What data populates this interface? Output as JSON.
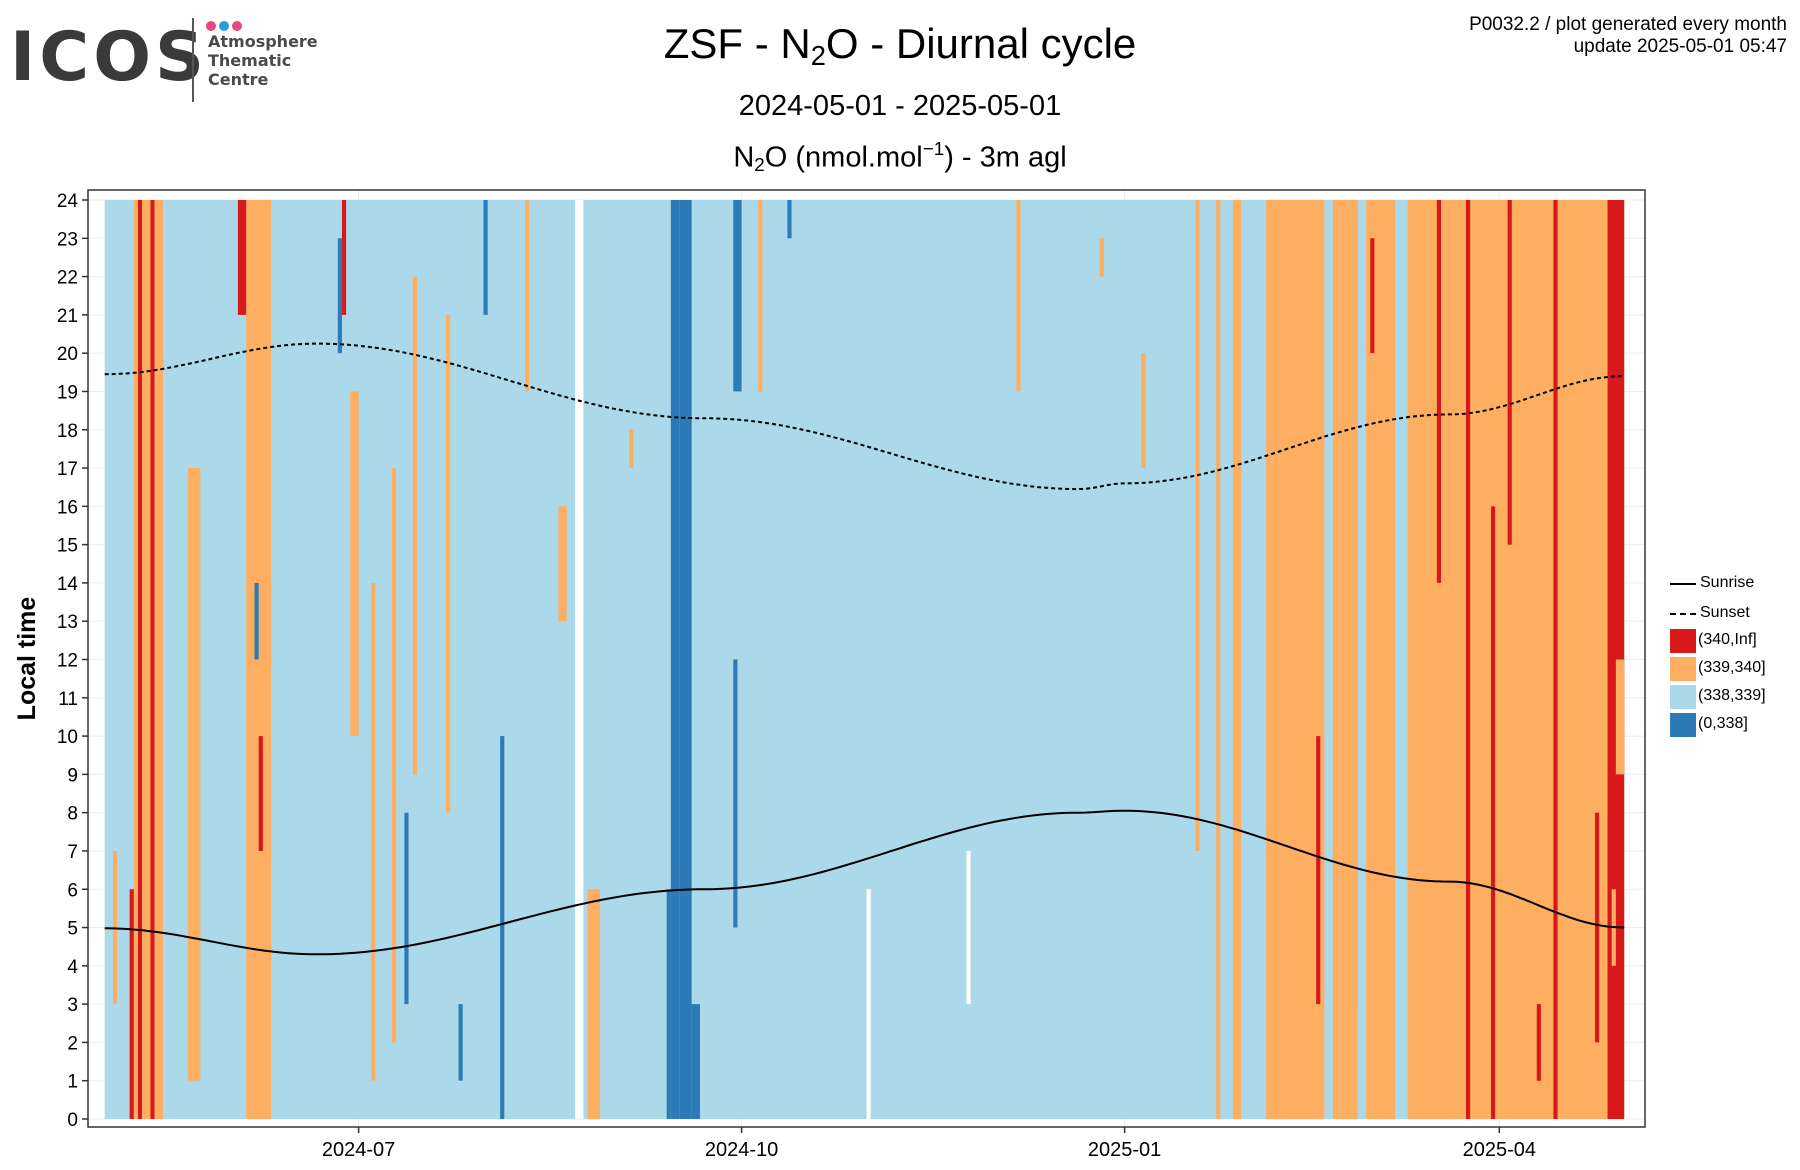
{
  "logo": {
    "wordmark": "ICOS",
    "line1": "Atmosphere",
    "line2": "Thematic",
    "line3": "Centre",
    "dot_colors": [
      "#e8467c",
      "#2b9be0",
      "#e8467c"
    ]
  },
  "header": {
    "title_pre": "ZSF - N",
    "title_sub": "2",
    "title_post": "O - Diurnal cycle",
    "subtitle": "2024-05-01 - 2025-05-01",
    "plot_title_pre": "N",
    "plot_title_sub": "2",
    "plot_title_mid": "O (nmol.mol",
    "plot_title_sup": "−1",
    "plot_title_post": ") - 3m agl"
  },
  "meta": {
    "line1": "P0032.2 / plot generated every month",
    "line2": "update  2025-05-01 05:47"
  },
  "legend": {
    "sunrise": "Sunrise",
    "sunset": "Sunset",
    "bins": [
      {
        "label": "(340,Inf]",
        "color": "#d7191c"
      },
      {
        "label": "(339,340]",
        "color": "#fdae61"
      },
      {
        "label": "(338,339]",
        "color": "#abd9e9"
      },
      {
        "label": "(0,338]",
        "color": "#2c7bb6"
      }
    ]
  },
  "chart_data": {
    "type": "heatmap",
    "ylabel": "Local time",
    "xlabel": "",
    "x_start": "2024-05-01",
    "x_end": "2025-05-01",
    "xlim": [
      "2024-04-27",
      "2025-05-06"
    ],
    "ylim": [
      0,
      24
    ],
    "x_ticks": [
      "2024-07",
      "2024-10",
      "2025-01",
      "2025-04"
    ],
    "y_ticks": [
      0,
      1,
      2,
      3,
      4,
      5,
      6,
      7,
      8,
      9,
      10,
      11,
      12,
      13,
      14,
      15,
      16,
      17,
      18,
      19,
      20,
      21,
      22,
      23,
      24
    ],
    "grid": true,
    "legend_position": "right",
    "sunrise": {
      "dates": [
        "2024-05-01",
        "2024-06-21",
        "2024-09-22",
        "2024-12-21",
        "2025-01-01",
        "2025-03-20",
        "2025-05-01"
      ],
      "hours": [
        4.98,
        4.3,
        6.0,
        8.0,
        8.05,
        6.2,
        5.0
      ]
    },
    "sunset": {
      "dates": [
        "2024-05-01",
        "2024-06-21",
        "2024-09-22",
        "2024-12-21",
        "2025-01-01",
        "2025-03-20",
        "2025-05-01"
      ],
      "hours": [
        19.45,
        20.25,
        18.3,
        16.45,
        16.6,
        18.4,
        19.4
      ]
    },
    "background_color": "#abd9e9",
    "strips": [
      {
        "from": "2024-05-08",
        "to": "2024-05-09",
        "h0": 0,
        "h1": 24,
        "color": "#fdae61"
      },
      {
        "from": "2024-05-09",
        "to": "2024-05-10",
        "h0": 0,
        "h1": 24,
        "color": "#d7191c"
      },
      {
        "from": "2024-05-10",
        "to": "2024-05-12",
        "h0": 0,
        "h1": 24,
        "color": "#fdae61"
      },
      {
        "from": "2024-05-07",
        "to": "2024-05-08",
        "h0": 0,
        "h1": 6,
        "color": "#d7191c"
      },
      {
        "from": "2024-05-12",
        "to": "2024-05-13",
        "h0": 0,
        "h1": 24,
        "color": "#d7191c"
      },
      {
        "from": "2024-05-13",
        "to": "2024-05-15",
        "h0": 0,
        "h1": 24,
        "color": "#fdae61"
      },
      {
        "from": "2024-05-03",
        "to": "2024-05-04",
        "h0": 3,
        "h1": 7,
        "color": "#fdae61"
      },
      {
        "from": "2024-05-21",
        "to": "2024-05-24",
        "h0": 1,
        "h1": 17,
        "color": "#fdae61"
      },
      {
        "from": "2024-06-04",
        "to": "2024-06-06",
        "h0": 0,
        "h1": 24,
        "color": "#fdae61"
      },
      {
        "from": "2024-06-02",
        "to": "2024-06-04",
        "h0": 21,
        "h1": 24,
        "color": "#d7191c"
      },
      {
        "from": "2024-06-06",
        "to": "2024-06-10",
        "h0": 0,
        "h1": 24,
        "color": "#fdae61"
      },
      {
        "from": "2024-06-07",
        "to": "2024-06-08",
        "h0": 7,
        "h1": 10,
        "color": "#d7191c"
      },
      {
        "from": "2024-06-06",
        "to": "2024-06-07",
        "h0": 12,
        "h1": 14,
        "color": "#2c7bb6"
      },
      {
        "from": "2024-06-27",
        "to": "2024-06-28",
        "h0": 21,
        "h1": 24,
        "color": "#d7191c"
      },
      {
        "from": "2024-06-26",
        "to": "2024-06-27",
        "h0": 20,
        "h1": 23,
        "color": "#2c7bb6"
      },
      {
        "from": "2024-06-29",
        "to": "2024-07-01",
        "h0": 10,
        "h1": 19,
        "color": "#fdae61"
      },
      {
        "from": "2024-07-04",
        "to": "2024-07-05",
        "h0": 1,
        "h1": 14,
        "color": "#fdae61"
      },
      {
        "from": "2024-07-09",
        "to": "2024-07-10",
        "h0": 2,
        "h1": 17,
        "color": "#fdae61"
      },
      {
        "from": "2024-07-12",
        "to": "2024-07-13",
        "h0": 3,
        "h1": 8,
        "color": "#2c7bb6"
      },
      {
        "from": "2024-07-14",
        "to": "2024-07-15",
        "h0": 9,
        "h1": 22,
        "color": "#fdae61"
      },
      {
        "from": "2024-07-22",
        "to": "2024-07-23",
        "h0": 8,
        "h1": 21,
        "color": "#fdae61"
      },
      {
        "from": "2024-07-25",
        "to": "2024-07-26",
        "h0": 1,
        "h1": 3,
        "color": "#2c7bb6"
      },
      {
        "from": "2024-07-31",
        "to": "2024-08-01",
        "h0": 21,
        "h1": 24,
        "color": "#2c7bb6"
      },
      {
        "from": "2024-08-04",
        "to": "2024-08-05",
        "h0": 0,
        "h1": 10,
        "color": "#2c7bb6"
      },
      {
        "from": "2024-08-10",
        "to": "2024-08-11",
        "h0": 19,
        "h1": 24,
        "color": "#fdae61"
      },
      {
        "from": "2024-08-18",
        "to": "2024-08-20",
        "h0": 13,
        "h1": 16,
        "color": "#fdae61"
      },
      {
        "from": "2024-08-22",
        "to": "2024-08-24",
        "h0": 0,
        "h1": 24,
        "color": "#ffffff"
      },
      {
        "from": "2024-08-25",
        "to": "2024-08-28",
        "h0": 0,
        "h1": 6,
        "color": "#fdae61"
      },
      {
        "from": "2024-09-04",
        "to": "2024-09-05",
        "h0": 17,
        "h1": 18,
        "color": "#fdae61"
      },
      {
        "from": "2024-09-14",
        "to": "2024-09-16",
        "h0": 0,
        "h1": 24,
        "color": "#2c7bb6"
      },
      {
        "from": "2024-09-16",
        "to": "2024-09-19",
        "h0": 0,
        "h1": 24,
        "color": "#2c7bb6"
      },
      {
        "from": "2024-09-19",
        "to": "2024-09-21",
        "h0": 0,
        "h1": 3,
        "color": "#2c7bb6"
      },
      {
        "from": "2024-09-13",
        "to": "2024-09-14",
        "h0": 0,
        "h1": 6,
        "color": "#2c7bb6"
      },
      {
        "from": "2024-09-29",
        "to": "2024-10-01",
        "h0": 19,
        "h1": 24,
        "color": "#2c7bb6"
      },
      {
        "from": "2024-09-29",
        "to": "2024-09-30",
        "h0": 5,
        "h1": 12,
        "color": "#2c7bb6"
      },
      {
        "from": "2024-10-05",
        "to": "2024-10-06",
        "h0": 19,
        "h1": 24,
        "color": "#fdae61"
      },
      {
        "from": "2024-10-12",
        "to": "2024-10-13",
        "h0": 23,
        "h1": 24,
        "color": "#2c7bb6"
      },
      {
        "from": "2024-10-31",
        "to": "2024-11-01",
        "h0": 0,
        "h1": 6,
        "color": "#ffffff"
      },
      {
        "from": "2024-11-24",
        "to": "2024-11-25",
        "h0": 3,
        "h1": 7,
        "color": "#ffffff"
      },
      {
        "from": "2024-12-06",
        "to": "2024-12-07",
        "h0": 19,
        "h1": 24,
        "color": "#fdae61"
      },
      {
        "from": "2024-12-26",
        "to": "2024-12-27",
        "h0": 22,
        "h1": 23,
        "color": "#fdae61"
      },
      {
        "from": "2025-01-05",
        "to": "2025-01-06",
        "h0": 17,
        "h1": 20,
        "color": "#fdae61"
      },
      {
        "from": "2025-01-18",
        "to": "2025-01-19",
        "h0": 7,
        "h1": 24,
        "color": "#fdae61"
      },
      {
        "from": "2025-01-23",
        "to": "2025-01-24",
        "h0": 0,
        "h1": 24,
        "color": "#fdae61"
      },
      {
        "from": "2025-01-27",
        "to": "2025-01-29",
        "h0": 0,
        "h1": 24,
        "color": "#fdae61"
      },
      {
        "from": "2025-02-04",
        "to": "2025-02-18",
        "h0": 0,
        "h1": 24,
        "color": "#fdae61"
      },
      {
        "from": "2025-02-16",
        "to": "2025-02-17",
        "h0": 3,
        "h1": 10,
        "color": "#d7191c"
      },
      {
        "from": "2025-02-20",
        "to": "2025-02-26",
        "h0": 0,
        "h1": 24,
        "color": "#fdae61"
      },
      {
        "from": "2025-02-26",
        "to": "2025-02-27",
        "h0": 0,
        "h1": 3,
        "color": "#abd9e9"
      },
      {
        "from": "2025-02-28",
        "to": "2025-03-06",
        "h0": 0,
        "h1": 24,
        "color": "#fdae61"
      },
      {
        "from": "2025-03-01",
        "to": "2025-03-02",
        "h0": 20,
        "h1": 23,
        "color": "#d7191c"
      },
      {
        "from": "2025-03-06",
        "to": "2025-03-07",
        "h0": 0,
        "h1": 24,
        "color": "#fdae61"
      },
      {
        "from": "2025-03-10",
        "to": "2025-05-01",
        "h0": 0,
        "h1": 24,
        "color": "#fdae61"
      },
      {
        "from": "2025-03-17",
        "to": "2025-03-18",
        "h0": 14,
        "h1": 24,
        "color": "#d7191c"
      },
      {
        "from": "2025-03-24",
        "to": "2025-03-25",
        "h0": 0,
        "h1": 24,
        "color": "#d7191c"
      },
      {
        "from": "2025-03-30",
        "to": "2025-03-31",
        "h0": 0,
        "h1": 16,
        "color": "#d7191c"
      },
      {
        "from": "2025-04-03",
        "to": "2025-04-04",
        "h0": 15,
        "h1": 24,
        "color": "#d7191c"
      },
      {
        "from": "2025-04-10",
        "to": "2025-04-11",
        "h0": 1,
        "h1": 3,
        "color": "#d7191c"
      },
      {
        "from": "2025-04-14",
        "to": "2025-04-15",
        "h0": 0,
        "h1": 24,
        "color": "#d7191c"
      },
      {
        "from": "2025-04-24",
        "to": "2025-04-25",
        "h0": 2,
        "h1": 8,
        "color": "#d7191c"
      },
      {
        "from": "2025-04-27",
        "to": "2025-05-01",
        "h0": 0,
        "h1": 24,
        "color": "#d7191c"
      },
      {
        "from": "2025-04-29",
        "to": "2025-05-01",
        "h0": 9,
        "h1": 12,
        "color": "#fdae61"
      },
      {
        "from": "2025-04-28",
        "to": "2025-04-29",
        "h0": 4,
        "h1": 6,
        "color": "#fdae61"
      }
    ]
  }
}
